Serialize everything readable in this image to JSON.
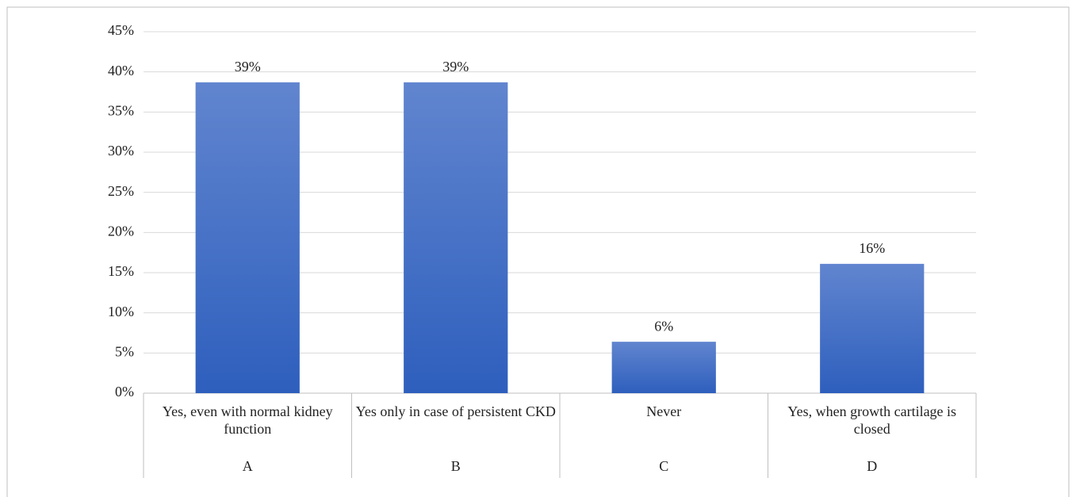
{
  "chart_data": {
    "type": "bar",
    "categories": [
      "A",
      "B",
      "C",
      "D"
    ],
    "category_descriptions": [
      "Yes, even with normal kidney function",
      "Yes only in case of persistent CKD",
      "Never",
      "Yes, when growth cartilage is closed"
    ],
    "values": [
      38.7,
      38.7,
      6.4,
      16.1
    ],
    "value_labels": [
      "39%",
      "39%",
      "6%",
      "16%"
    ],
    "color": "#4472c4",
    "ylim": [
      0,
      45
    ],
    "yticks": [
      {
        "value": 0,
        "label": "0%"
      },
      {
        "value": 5,
        "label": "5%"
      },
      {
        "value": 10,
        "label": "10%"
      },
      {
        "value": 15,
        "label": "15%"
      },
      {
        "value": 20,
        "label": "20%"
      },
      {
        "value": 25,
        "label": "25%"
      },
      {
        "value": 30,
        "label": "30%"
      },
      {
        "value": 35,
        "label": "35%"
      },
      {
        "value": 40,
        "label": "40%"
      },
      {
        "value": 45,
        "label": "45%"
      }
    ],
    "grid": true
  }
}
